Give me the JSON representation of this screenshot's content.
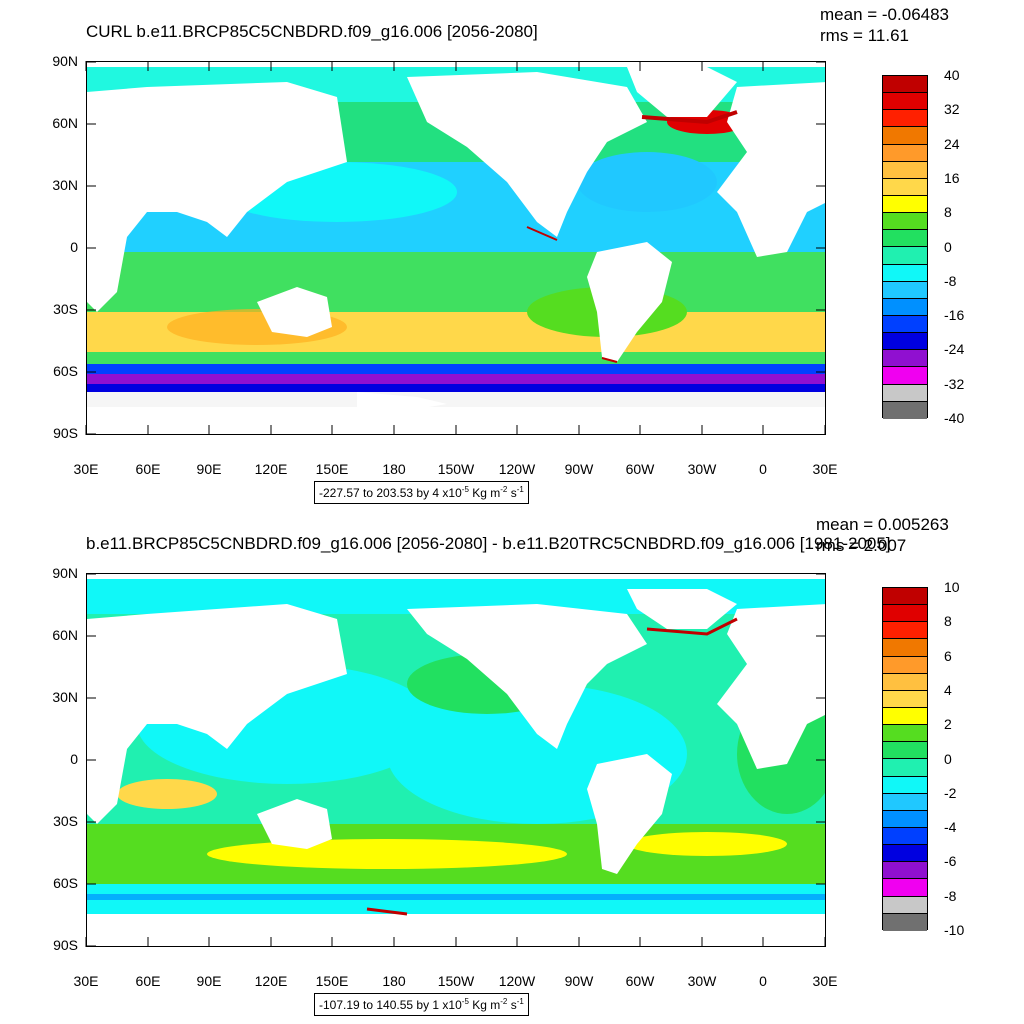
{
  "panels": [
    {
      "title": "CURL b.e11.BRCP85C5CNBDRD.f09_g16.006 [2056-2080]",
      "mean": "mean = -0.06483",
      "rms": "rms = 11.61",
      "info": "-227.57 to 203.53 by 4 x10",
      "info_exp": "-5",
      "info_units": " Kg m",
      "info_units_exp": "-2",
      "info_tail": " s",
      "info_tail_exp": "-1",
      "colorbar_labels": [
        "40",
        "32",
        "24",
        "16",
        "8",
        "0",
        "-8",
        "-16",
        "-24",
        "-32",
        "-40"
      ]
    },
    {
      "title": "b.e11.BRCP85C5CNBDRD.f09_g16.006 [2056-2080] - b.e11.B20TRC5CNBDRD.f09_g16.006 [1981-2005]",
      "mean": "mean = 0.005263",
      "rms": "rms = 2.007",
      "info": "-107.19 to 140.55 by 1 x10",
      "info_exp": "-5",
      "info_units": " Kg m",
      "info_units_exp": "-2",
      "info_tail": " s",
      "info_tail_exp": "-1",
      "colorbar_labels": [
        "10",
        "8",
        "6",
        "4",
        "2",
        "0",
        "-2",
        "-4",
        "-6",
        "-8",
        "-10"
      ]
    }
  ],
  "lat_labels": [
    "90N",
    "60N",
    "30N",
    "0",
    "30S",
    "60S",
    "90S"
  ],
  "lon_labels": [
    "30E",
    "60E",
    "90E",
    "120E",
    "150E",
    "180",
    "150W",
    "120W",
    "90W",
    "60W",
    "30W",
    "0",
    "30E"
  ],
  "colors": {
    "colorbar": [
      "#c00000",
      "#e00000",
      "#ff2000",
      "#f07800",
      "#ff9a2a",
      "#ffc040",
      "#ffd84a",
      "#ffff00",
      "#55dd20",
      "#22e060",
      "#20f0b0",
      "#10f8f8",
      "#20c8ff",
      "#0090ff",
      "#0040ff",
      "#0000e0",
      "#9010d0",
      "#f000f0",
      "#c8c8c8",
      "#707070"
    ],
    "ocean_base_top": "#22e080",
    "ocean_base_bottom": "#30f0b0",
    "land": "#ffffff"
  }
}
